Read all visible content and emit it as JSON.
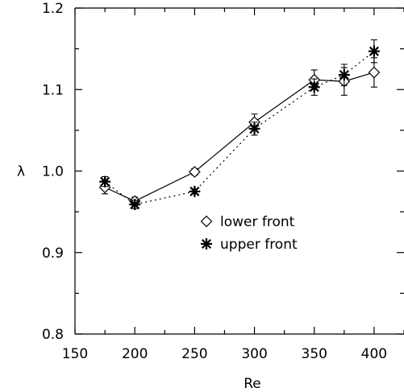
{
  "chart_data": {
    "type": "line",
    "xlabel": "Re",
    "ylabel": "λ",
    "xlim": [
      150,
      425
    ],
    "ylim": [
      0.8,
      1.2
    ],
    "xticks": [
      150,
      200,
      250,
      300,
      350,
      400
    ],
    "yticks": [
      0.8,
      0.9,
      1.0,
      1.1,
      1.2
    ],
    "xtick_labels": [
      "150",
      "200",
      "250",
      "300",
      "350",
      "400"
    ],
    "ytick_labels": [
      "0.8",
      "0.9",
      "1.0",
      "1.1",
      "1.2"
    ],
    "grid": false,
    "legend_position": "center",
    "series": [
      {
        "name": "lower front",
        "marker": "diamond",
        "line_style": "solid",
        "points": [
          {
            "x": 175,
            "y": 0.98,
            "err": 0.008
          },
          {
            "x": 200,
            "y": 0.963,
            "err": 0.005
          },
          {
            "x": 250,
            "y": 0.999,
            "err": 0.004
          },
          {
            "x": 300,
            "y": 1.06,
            "err": 0.01
          },
          {
            "x": 350,
            "y": 1.112,
            "err": 0.012
          },
          {
            "x": 375,
            "y": 1.11,
            "err": 0.017
          },
          {
            "x": 400,
            "y": 1.121,
            "err": 0.018
          }
        ]
      },
      {
        "name": "upper front",
        "marker": "asterisk",
        "line_style": "dotted",
        "points": [
          {
            "x": 175,
            "y": 0.987,
            "err": 0.006
          },
          {
            "x": 200,
            "y": 0.959,
            "err": 0.005
          },
          {
            "x": 250,
            "y": 0.975,
            "err": 0.003
          },
          {
            "x": 300,
            "y": 1.052,
            "err": 0.008
          },
          {
            "x": 350,
            "y": 1.103,
            "err": 0.01
          },
          {
            "x": 375,
            "y": 1.118,
            "err": 0.013
          },
          {
            "x": 400,
            "y": 1.147,
            "err": 0.014
          }
        ]
      }
    ]
  }
}
